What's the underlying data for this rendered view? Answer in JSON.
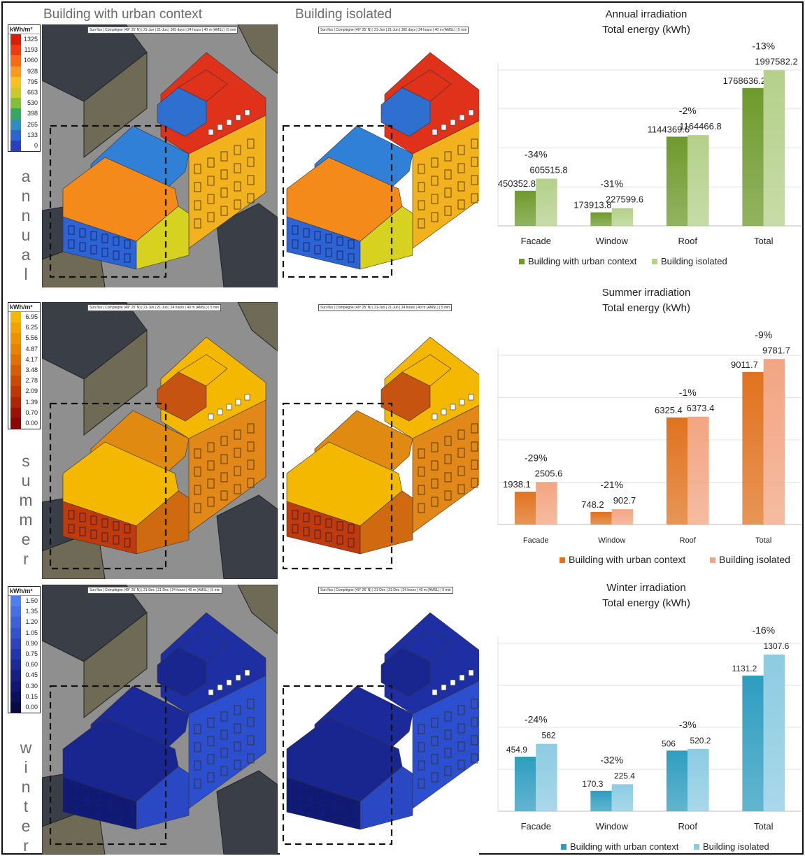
{
  "columns": {
    "context_title": "Building with urban context",
    "isolated_title": "Building isolated"
  },
  "seasons": [
    {
      "key": "annual",
      "word": "annual",
      "legend_unit": "kWh/m²",
      "legend_values": [
        "1325",
        "1193",
        "1060",
        "928",
        "795",
        "663",
        "530",
        "398",
        "265",
        "133",
        "0"
      ],
      "legend_colors": [
        "#d81e05",
        "#ee3a12",
        "#f66a14",
        "#fa9a1d",
        "#f7c21e",
        "#c8c92a",
        "#7fbf3a",
        "#36a56a",
        "#2f8dc2",
        "#2d64d0",
        "#2a3fbf"
      ],
      "caption_context": "Sun flux | Compiègne (49° 25' N) | 21-Jun | 21-Jun | 365 days | 24 hours | 40 m (AMSL) | 5 min",
      "caption_isolated": "Sun flux | Compiègne (49° 25' N) | 21-Jun | 21-Jun | 365 days | 24 hours | 40 m (AMSL) | 5 min"
    },
    {
      "key": "summer",
      "word": "summer",
      "legend_unit": "kWh/m²",
      "legend_values": [
        "6.95",
        "6.25",
        "5.56",
        "4.87",
        "4.17",
        "3.48",
        "2.78",
        "2.09",
        "1.39",
        "0.70",
        "0.00"
      ],
      "legend_colors": [
        "#f5b800",
        "#f3a300",
        "#ef9200",
        "#e88200",
        "#e07000",
        "#d65e00",
        "#cc4a00",
        "#c03600",
        "#b02400",
        "#9c1200",
        "#8a0600"
      ],
      "caption_context": "Sun flux | Compiègne (49° 25' N) | 21-Jun | 21-Jun | 24 hours | 40 m (AMSL) | 5 min",
      "caption_isolated": "Sun flux | Compiègne (49° 25' N) | 21-Jun | 21-Jun | 24 hours | 40 m (AMSL) | 5 min"
    },
    {
      "key": "winter",
      "word": "winter",
      "legend_unit": "kWh/m²",
      "legend_values": [
        "1.50",
        "1.35",
        "1.20",
        "1.05",
        "0.90",
        "0.75",
        "0.60",
        "0.45",
        "0.30",
        "0.15",
        "0.00"
      ],
      "legend_colors": [
        "#4f7ef0",
        "#466fe6",
        "#3d60da",
        "#3451cc",
        "#2c43bd",
        "#2436ab",
        "#1c2a98",
        "#162084",
        "#11176e",
        "#0c1058",
        "#080a40"
      ],
      "caption_context": "Sun flux | Compiègne (49° 25' N) | 21-Dec | 21-Dec | 24 hours | 40 m (AMSL) | 5 min",
      "caption_isolated": "Sun flux | Compiègne (49° 25' N) | 21-Dec | 21-Dec | 24 hours | 40 m (AMSL) | 5 min"
    }
  ],
  "colors": {
    "context_scene_bg": "#8f8f8f",
    "neighbor_dark": "#3a3f47",
    "neighbor_wall": "#6f6a55",
    "dashed_box": "#111111"
  },
  "chart_data": [
    {
      "type": "bar",
      "title": "Annual irradiation",
      "subtitle": "Total energy (kWh)",
      "categories": [
        "Facade",
        "Window",
        "Roof",
        "Total"
      ],
      "series": [
        {
          "name": "Building with urban context",
          "values": [
            450352.8,
            173913.8,
            1144369.6,
            1768636.2
          ],
          "labels": [
            "450352.8",
            "173913.8",
            "1144369.6",
            "1768636.2"
          ],
          "color": "#6e9a2c"
        },
        {
          "name": "Building isolated",
          "values": [
            605515.8,
            227599.6,
            1164466.8,
            1997582.2
          ],
          "labels": [
            "605515.8",
            "227599.6",
            "1164466.8",
            "1997582.2"
          ],
          "color": "#b4d08a"
        }
      ],
      "annotations": [
        "-34%",
        "-31%",
        "-2%",
        "-13%"
      ],
      "ylim": [
        0,
        2000000
      ],
      "grid": true,
      "legend": "bottom"
    },
    {
      "type": "bar",
      "title": "Summer irradiation",
      "subtitle": "Total energy (kWh)",
      "categories": [
        "Facade",
        "Window",
        "Roof",
        "Total"
      ],
      "series": [
        {
          "name": "Building with urban context",
          "values": [
            1938.1,
            748.2,
            6325.4,
            9011.7
          ],
          "labels": [
            "1938.1",
            "748.2",
            "6325.4",
            "9011.7"
          ],
          "color": "#e0721e"
        },
        {
          "name": "Building isolated",
          "values": [
            2505.6,
            902.7,
            6373.4,
            9781.7
          ],
          "labels": [
            "2505.6",
            "902.7",
            "6373.4",
            "9781.7"
          ],
          "color": "#f2a582"
        }
      ],
      "annotations": [
        "-29%",
        "-21%",
        "-1%",
        "-9%"
      ],
      "ylim": [
        0,
        10000
      ],
      "grid": true,
      "legend": "bottom"
    },
    {
      "type": "bar",
      "title": "Winter irradiation",
      "subtitle": "Total energy (kWh)",
      "categories": [
        "Facade",
        "Window",
        "Roof",
        "Total"
      ],
      "series": [
        {
          "name": "Building with urban context",
          "values": [
            454.9,
            170.3,
            506,
            1131.2
          ],
          "labels": [
            "454.9",
            "170.3",
            "506",
            "1131.2"
          ],
          "color": "#2e9dbf"
        },
        {
          "name": "Building isolated",
          "values": [
            562,
            225.4,
            520.2,
            1307.6
          ],
          "labels": [
            "562",
            "225.4",
            "520.2",
            "1307.6"
          ],
          "color": "#8ccbe2"
        }
      ],
      "annotations": [
        "-24%",
        "-32%",
        "-3%",
        "-16%"
      ],
      "ylim": [
        0,
        1400
      ],
      "grid": true,
      "legend": "bottom"
    }
  ]
}
